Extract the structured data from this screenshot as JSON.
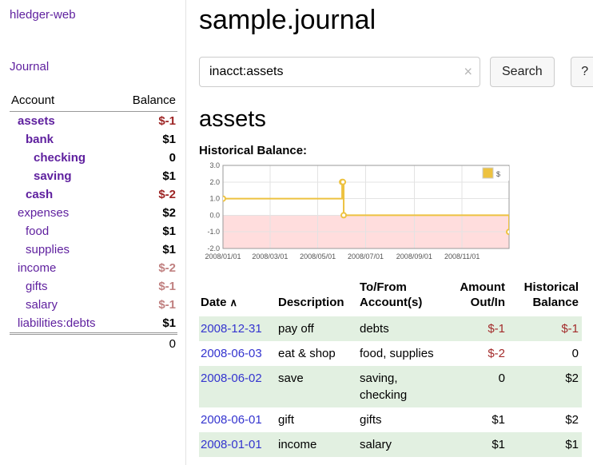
{
  "app": {
    "brand": "hledger-web",
    "nav_journal": "Journal"
  },
  "colors": {
    "accent_purple": "#5e1f9e",
    "link_blue": "#3434cf",
    "negative_strong": "#9d2424",
    "negative_soft": "#c08080",
    "row_green": "#e2f0e1",
    "chart_line": "#edc240",
    "chart_negative_region": "#ffdddd"
  },
  "sidebar": {
    "header": {
      "account": "Account",
      "balance": "Balance"
    },
    "accounts": [
      {
        "name": "assets",
        "balance": "$-1",
        "indent": 0,
        "selected": true
      },
      {
        "name": "bank",
        "balance": "$1",
        "indent": 1,
        "selected": true
      },
      {
        "name": "checking",
        "balance": "0",
        "indent": 2,
        "selected": true
      },
      {
        "name": "saving",
        "balance": "$1",
        "indent": 2,
        "selected": true
      },
      {
        "name": "cash",
        "balance": "$-2",
        "indent": 1,
        "selected": true
      },
      {
        "name": "expenses",
        "balance": "$2",
        "indent": 0,
        "selected": false
      },
      {
        "name": "food",
        "balance": "$1",
        "indent": 1,
        "selected": false
      },
      {
        "name": "supplies",
        "balance": "$1",
        "indent": 1,
        "selected": false
      },
      {
        "name": "income",
        "balance": "$-2",
        "indent": 0,
        "selected": false
      },
      {
        "name": "gifts",
        "balance": "$-1",
        "indent": 1,
        "selected": false
      },
      {
        "name": "salary",
        "balance": "$-1",
        "indent": 1,
        "selected": false
      },
      {
        "name": "liabilities:debts",
        "balance": "$1",
        "indent": 0,
        "selected": false
      }
    ],
    "total": "0"
  },
  "header": {
    "title": "sample.journal"
  },
  "search": {
    "value": "inacct:assets",
    "clear_icon": "×",
    "button": "Search",
    "help_button": "?"
  },
  "main": {
    "account_heading": "assets",
    "chart_label": "Historical Balance:"
  },
  "chart_data": {
    "type": "line",
    "step": true,
    "title": "Historical Balance:",
    "series": [
      {
        "name": "$",
        "color": "#edc240",
        "points": [
          [
            "2008-01-01",
            1
          ],
          [
            "2008-06-01",
            2
          ],
          [
            "2008-06-02",
            2
          ],
          [
            "2008-06-03",
            0
          ],
          [
            "2008-12-31",
            -1
          ]
        ]
      }
    ],
    "ylim": [
      -2,
      3
    ],
    "yticks": [
      3,
      2,
      1,
      0,
      -1,
      -2
    ],
    "xticks": [
      "2008/01/01",
      "2008/03/01",
      "2008/05/01",
      "2008/07/01",
      "2008/09/01",
      "2008/11/01"
    ],
    "xrange": [
      "2008-01-01",
      "2008-12-31"
    ],
    "negative_region_color": "#ffdddd",
    "grid": true,
    "legend_position": "top-right"
  },
  "register": {
    "columns": [
      {
        "label": "Date",
        "sort": "∧"
      },
      {
        "label": "Description"
      },
      {
        "label": "To/From Account(s)"
      },
      {
        "label": "Amount Out/In"
      },
      {
        "label": "Historical Balance"
      }
    ],
    "rows": [
      {
        "date": "2008-12-31",
        "description": "pay off",
        "accounts": "debts",
        "amount": "$-1",
        "balance": "$-1"
      },
      {
        "date": "2008-06-03",
        "description": "eat & shop",
        "accounts": "food, supplies",
        "amount": "$-2",
        "balance": "0"
      },
      {
        "date": "2008-06-02",
        "description": "save",
        "accounts": "saving, checking",
        "amount": "0",
        "balance": "$2"
      },
      {
        "date": "2008-06-01",
        "description": "gift",
        "accounts": "gifts",
        "amount": "$1",
        "balance": "$2"
      },
      {
        "date": "2008-01-01",
        "description": "income",
        "accounts": "salary",
        "amount": "$1",
        "balance": "$1"
      }
    ]
  }
}
